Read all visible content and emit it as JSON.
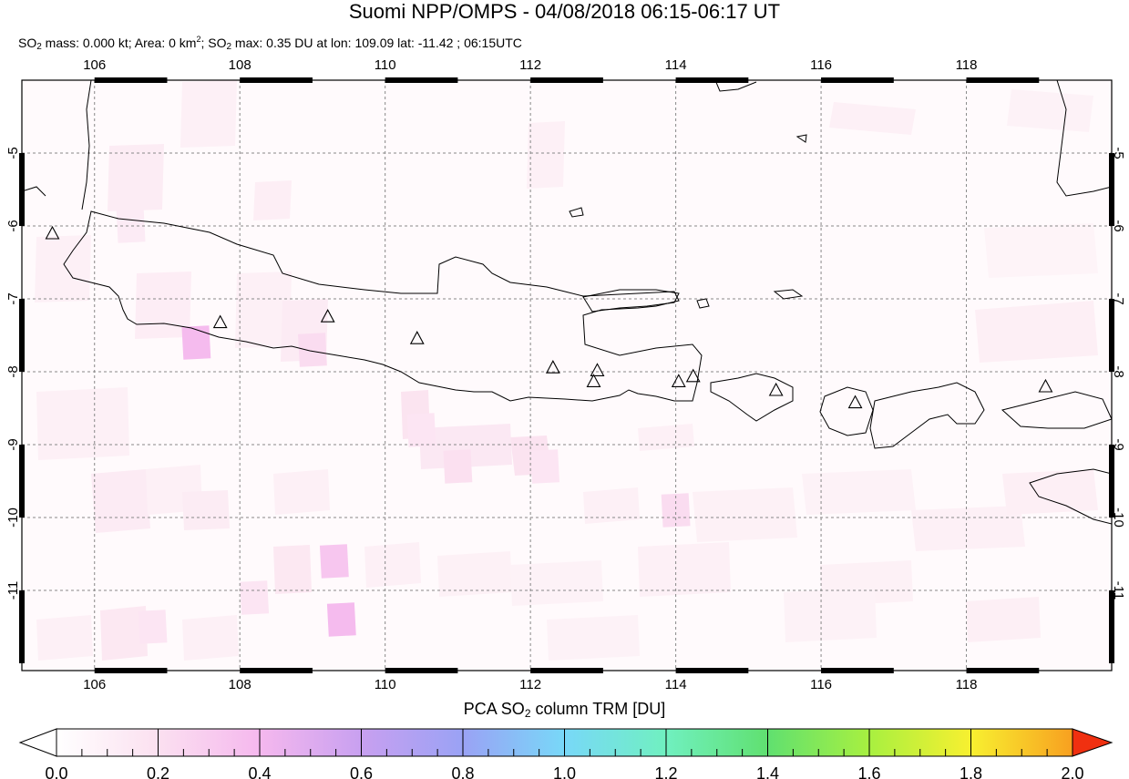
{
  "title": "Suomi NPP/OMPS - 04/08/2018 06:15-06:17 UT",
  "subtitle": {
    "so2_mass": "0.000 kt",
    "area": "0 km",
    "so2_max_value": "0.35 DU",
    "lon": "109.09",
    "lat": "-11.42",
    "time": "06:15UTC"
  },
  "map": {
    "lon_range": [
      105,
      120
    ],
    "lat_range": [
      -12.1,
      -4.0
    ],
    "lon_ticks": [
      "106",
      "108",
      "110",
      "112",
      "114",
      "116",
      "118"
    ],
    "lat_ticks": [
      "-5",
      "-6",
      "-7",
      "-8",
      "-9",
      "-10",
      "-11"
    ],
    "grid": true,
    "volcanoes": [
      {
        "lon": 105.42,
        "lat": -6.1
      },
      {
        "lon": 107.73,
        "lat": -7.32
      },
      {
        "lon": 109.21,
        "lat": -7.24
      },
      {
        "lon": 110.44,
        "lat": -7.54
      },
      {
        "lon": 112.31,
        "lat": -7.94
      },
      {
        "lon": 112.92,
        "lat": -7.98
      },
      {
        "lon": 112.87,
        "lat": -8.13
      },
      {
        "lon": 114.04,
        "lat": -8.13
      },
      {
        "lon": 114.24,
        "lat": -8.06
      },
      {
        "lon": 115.38,
        "lat": -8.25
      },
      {
        "lon": 116.47,
        "lat": -8.42
      },
      {
        "lon": 119.09,
        "lat": -8.2
      }
    ],
    "so2_cells": [
      {
        "lon": 107.4,
        "lat": -7.6,
        "value": 0.35
      },
      {
        "lon": 109.0,
        "lat": -7.7,
        "value": 0.2
      },
      {
        "lon": 109.3,
        "lat": -10.6,
        "value": 0.3
      },
      {
        "lon": 109.4,
        "lat": -11.4,
        "value": 0.35
      },
      {
        "lon": 110.5,
        "lat": -8.8,
        "value": 0.15
      },
      {
        "lon": 111.0,
        "lat": -9.3,
        "value": 0.18
      },
      {
        "lon": 112.2,
        "lat": -9.3,
        "value": 0.15
      },
      {
        "lon": 114.0,
        "lat": -9.9,
        "value": 0.2
      },
      {
        "lon": 108.2,
        "lat": -11.1,
        "value": 0.15
      },
      {
        "lon": 106.5,
        "lat": -6.0,
        "value": 0.12
      },
      {
        "lon": 106.8,
        "lat": -11.5,
        "value": 0.15
      }
    ]
  },
  "colorbar": {
    "label": "PCA SO",
    "label_sub": "2",
    "label_rest": " column TRM [DU]",
    "ticks": [
      "0.0",
      "0.2",
      "0.4",
      "0.6",
      "0.8",
      "1.0",
      "1.2",
      "1.4",
      "1.6",
      "1.8",
      "2.0"
    ],
    "colors": [
      "#ffffff",
      "#fbe0f0",
      "#f5b8ee",
      "#c8a0f0",
      "#9aa2f5",
      "#78d8f8",
      "#70f0c0",
      "#60e070",
      "#a8f040",
      "#f8f030",
      "#f8a020",
      "#f03010"
    ]
  }
}
